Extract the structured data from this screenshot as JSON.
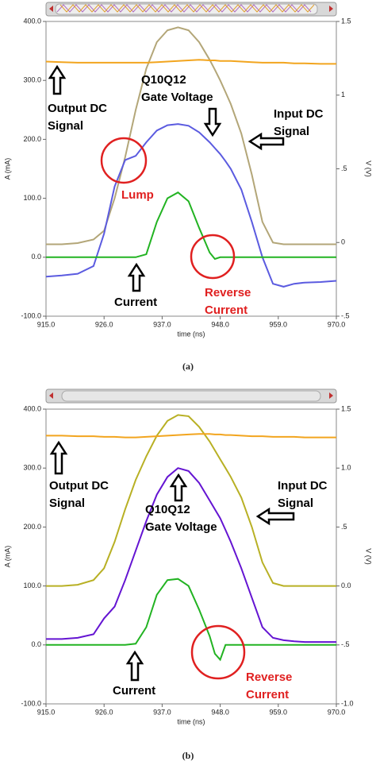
{
  "chart_data": [
    {
      "type": "line",
      "caption": "(a)",
      "x_label": "time (ns)",
      "y_label": "A (mA)",
      "y2_label": "V (V)",
      "x": [
        915,
        918,
        921,
        924,
        926,
        928,
        930,
        932,
        934,
        936,
        938,
        940,
        942,
        944,
        946,
        947,
        948,
        949,
        950,
        952,
        954,
        956,
        958,
        960,
        962,
        964,
        967,
        970
      ],
      "xlim": [
        915,
        970
      ],
      "xticks": [
        {
          "value": 915,
          "label": "915.0"
        },
        {
          "value": 926,
          "label": "926.0"
        },
        {
          "value": 937,
          "label": "937.0"
        },
        {
          "value": 948,
          "label": "948.0"
        },
        {
          "value": 959,
          "label": "959.0"
        },
        {
          "value": 970,
          "label": "970.0"
        }
      ],
      "ylim": [
        -100,
        400
      ],
      "yticks": [
        {
          "value": -100,
          "label": "-100.0"
        },
        {
          "value": 0,
          "label": "0.0"
        },
        {
          "value": 100,
          "label": "100.0"
        },
        {
          "value": 200,
          "label": "200.0"
        },
        {
          "value": 300,
          "label": "300.0"
        },
        {
          "value": 400,
          "label": "400.0"
        }
      ],
      "y2lim": [
        -0.5,
        1.5
      ],
      "y2ticks": [
        {
          "value": -0.5,
          "label": "-.5"
        },
        0,
        {
          "value": 0.5,
          "label": ".5"
        },
        1,
        1.5
      ],
      "series": [
        {
          "color": "#b3a678",
          "values": [
            22,
            22,
            24,
            30,
            45,
            100,
            170,
            250,
            320,
            365,
            385,
            390,
            385,
            365,
            335,
            318,
            300,
            280,
            260,
            210,
            140,
            60,
            25,
            22,
            22,
            22,
            22,
            22
          ]
        },
        {
          "color": "#f2a51f",
          "values": [
            332,
            331,
            330,
            330,
            330,
            330,
            330,
            330,
            330,
            331,
            332,
            333,
            334,
            335,
            334,
            334,
            333,
            333,
            333,
            332,
            331,
            330,
            330,
            330,
            329,
            329,
            328,
            328
          ]
        },
        {
          "color": "#5b5be0",
          "values": [
            -33,
            -31,
            -28,
            -15,
            40,
            120,
            165,
            172,
            195,
            215,
            224,
            226,
            223,
            212,
            195,
            185,
            175,
            163,
            150,
            115,
            60,
            0,
            -45,
            -50,
            -45,
            -43,
            -42,
            -40
          ]
        },
        {
          "color": "#22b322",
          "values": [
            0,
            0,
            0,
            0,
            0,
            0,
            0,
            0,
            5,
            60,
            100,
            110,
            95,
            50,
            8,
            -3,
            0,
            0,
            0,
            0,
            0,
            0,
            0,
            0,
            0,
            0,
            0,
            0
          ]
        }
      ],
      "annotations": [
        {
          "lines": [
            "Output DC",
            "Signal"
          ],
          "color": "#000000"
        },
        {
          "lines": [
            "Q10Q12",
            "Gate Voltage"
          ],
          "color": "#000000"
        },
        {
          "lines": [
            "Input DC",
            "Signal"
          ],
          "color": "#000000"
        },
        {
          "lines": [
            "Lump"
          ],
          "color": "#e02020"
        },
        {
          "lines": [
            "Current"
          ],
          "color": "#000000"
        },
        {
          "lines": [
            "Reverse",
            "Current"
          ],
          "color": "#e02020"
        }
      ]
    },
    {
      "type": "line",
      "caption": "(b)",
      "x_label": "time (ns)",
      "y_label": "A (mA)",
      "y2_label": "V (V)",
      "x": [
        915,
        918,
        921,
        924,
        926,
        928,
        930,
        932,
        934,
        936,
        938,
        940,
        942,
        944,
        946,
        947,
        948,
        949,
        950,
        952,
        954,
        956,
        958,
        960,
        962,
        964,
        967,
        970
      ],
      "xlim": [
        915,
        970
      ],
      "xticks": [
        {
          "value": 915,
          "label": "915.0"
        },
        {
          "value": 926,
          "label": "926.0"
        },
        {
          "value": 937,
          "label": "937.0"
        },
        {
          "value": 948,
          "label": "948.0"
        },
        {
          "value": 959,
          "label": "959.0"
        },
        {
          "value": 970,
          "label": "970.0"
        }
      ],
      "ylim": [
        -100,
        400
      ],
      "yticks": [
        {
          "value": -100,
          "label": "-100.0"
        },
        {
          "value": 0,
          "label": "0.0"
        },
        {
          "value": 100,
          "label": "100.0"
        },
        {
          "value": 200,
          "label": "200.0"
        },
        {
          "value": 300,
          "label": "300.0"
        },
        {
          "value": 400,
          "label": "400.0"
        }
      ],
      "y2lim": [
        -1,
        1.5
      ],
      "y2ticks": [
        {
          "value": -1,
          "label": "-1.0"
        },
        {
          "value": -0.5,
          "label": "-.5"
        },
        {
          "value": 0,
          "label": "0.0"
        },
        {
          "value": 0.5,
          "label": ".5"
        },
        {
          "value": 1,
          "label": "1.0"
        },
        1.5
      ],
      "series": [
        {
          "color": "#b8b024",
          "values": [
            100,
            100,
            102,
            110,
            130,
            175,
            230,
            280,
            320,
            355,
            380,
            390,
            388,
            370,
            345,
            330,
            315,
            300,
            285,
            250,
            200,
            140,
            105,
            100,
            100,
            100,
            100,
            100
          ]
        },
        {
          "color": "#f2a51f",
          "values": [
            355,
            355,
            354,
            354,
            353,
            353,
            352,
            352,
            353,
            354,
            355,
            356,
            357,
            358,
            358,
            357,
            357,
            356,
            356,
            355,
            354,
            354,
            353,
            353,
            353,
            352,
            352,
            352
          ]
        },
        {
          "color": "#6414d2",
          "values": [
            10,
            10,
            12,
            18,
            45,
            65,
            110,
            160,
            210,
            255,
            285,
            300,
            295,
            275,
            245,
            230,
            215,
            195,
            175,
            130,
            80,
            30,
            12,
            8,
            6,
            5,
            5,
            5
          ]
        },
        {
          "color": "#22b322",
          "values": [
            0,
            0,
            0,
            0,
            0,
            0,
            0,
            2,
            30,
            85,
            110,
            112,
            100,
            60,
            15,
            -15,
            -25,
            0,
            0,
            0,
            0,
            0,
            0,
            0,
            0,
            0,
            0,
            0
          ]
        }
      ],
      "annotations": [
        {
          "lines": [
            "Output DC",
            "Signal"
          ],
          "color": "#000000"
        },
        {
          "lines": [
            "Q10Q12",
            "Gate Voltage"
          ],
          "color": "#000000"
        },
        {
          "lines": [
            "Input DC",
            "Signal"
          ],
          "color": "#000000"
        },
        {
          "lines": [
            "Current"
          ],
          "color": "#000000"
        },
        {
          "lines": [
            "Reverse",
            "Current"
          ],
          "color": "#e02020"
        }
      ]
    }
  ]
}
